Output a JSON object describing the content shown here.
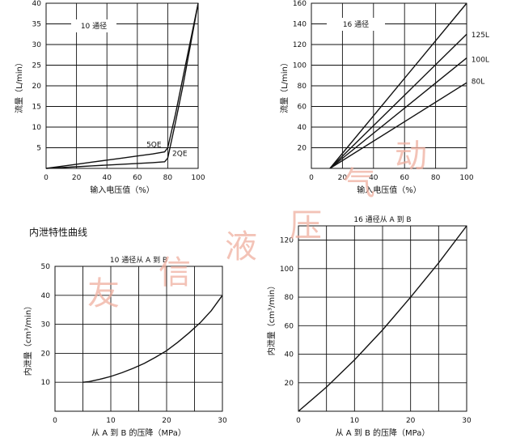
{
  "section_title": "内泄特性曲线",
  "watermark": [
    "友",
    "信",
    "液",
    "压",
    "气",
    "动"
  ],
  "chart_data": [
    {
      "id": "c1",
      "type": "line",
      "title": "",
      "box_label": "10 通径",
      "xlabel": "输入电压值（%）",
      "ylabel": "流量（L/min）",
      "xlim": [
        0,
        100
      ],
      "ylim": [
        0,
        40
      ],
      "xticks": [
        0,
        20,
        40,
        60,
        80,
        100
      ],
      "yticks": [
        5,
        10,
        15,
        20,
        25,
        30,
        35,
        40
      ],
      "grid": true,
      "series": [
        {
          "name": "5QE",
          "label_pos": [
            66,
            5.2
          ],
          "x": [
            0,
            10,
            20,
            30,
            40,
            50,
            60,
            70,
            78,
            80,
            85,
            90,
            95,
            100
          ],
          "y": [
            0,
            0.5,
            1,
            1.5,
            2,
            2.5,
            3,
            3.5,
            4,
            5,
            13,
            22,
            31,
            40
          ]
        },
        {
          "name": "2QE",
          "label_pos": [
            83,
            3
          ],
          "x": [
            0,
            10,
            20,
            30,
            40,
            50,
            60,
            70,
            78,
            80,
            85,
            90,
            95,
            100
          ],
          "y": [
            0,
            0.2,
            0.4,
            0.6,
            0.8,
            1.0,
            1.2,
            1.4,
            1.6,
            2.5,
            11,
            20,
            30,
            40
          ]
        }
      ]
    },
    {
      "id": "c2",
      "type": "line",
      "title": "",
      "box_label": "16 通径",
      "xlabel": "输入电压值（%）",
      "ylabel": "流量（L/min）",
      "xlim": [
        0,
        100
      ],
      "ylim": [
        0,
        160
      ],
      "xticks": [
        0,
        20,
        40,
        60,
        80,
        100
      ],
      "yticks": [
        20,
        40,
        60,
        80,
        100,
        120,
        140,
        160
      ],
      "grid": true,
      "series": [
        {
          "name": "",
          "x": [
            12,
            100
          ],
          "y": [
            0,
            160
          ]
        },
        {
          "name": "125L",
          "label_pos": [
            103,
            127
          ],
          "x": [
            12,
            100
          ],
          "y": [
            0,
            130
          ]
        },
        {
          "name": "100L",
          "label_pos": [
            103,
            103
          ],
          "x": [
            12,
            100
          ],
          "y": [
            0,
            107
          ]
        },
        {
          "name": "80L",
          "label_pos": [
            103,
            82
          ],
          "x": [
            12,
            100
          ],
          "y": [
            0,
            83
          ]
        }
      ]
    },
    {
      "id": "c3",
      "type": "line",
      "title": "10 通径从 A 到 B",
      "xlabel": "从 A 到 B 的压降（MPa）",
      "ylabel": "内泄量（cm³/min）",
      "xlim": [
        0,
        30
      ],
      "ylim": [
        0,
        50
      ],
      "xticks": [
        0,
        10,
        20,
        30
      ],
      "yticks": [
        10,
        20,
        30,
        40,
        50
      ],
      "grid": true,
      "series": [
        {
          "name": "",
          "x": [
            5,
            6,
            8,
            10,
            12,
            14,
            16,
            18,
            20,
            22,
            24,
            26,
            28,
            30
          ],
          "y": [
            10,
            10.2,
            11,
            12,
            13.3,
            14.8,
            16.5,
            18.6,
            20.9,
            23.8,
            27,
            30.5,
            34.7,
            40
          ]
        }
      ]
    },
    {
      "id": "c4",
      "type": "line",
      "title": "16 通径从 A 到 B",
      "xlabel": "从 A 到 B 的压降（MPa）",
      "ylabel": "内泄量（cm³/min）",
      "xlim": [
        0,
        30
      ],
      "ylim": [
        0,
        130
      ],
      "xticks": [
        0,
        10,
        20,
        30
      ],
      "yticks": [
        20,
        40,
        60,
        80,
        100,
        120
      ],
      "grid": true,
      "series": [
        {
          "name": "",
          "x": [
            0,
            5,
            10,
            15,
            20,
            25,
            30
          ],
          "y": [
            0,
            17,
            36,
            57,
            80,
            104,
            130
          ]
        }
      ]
    }
  ]
}
